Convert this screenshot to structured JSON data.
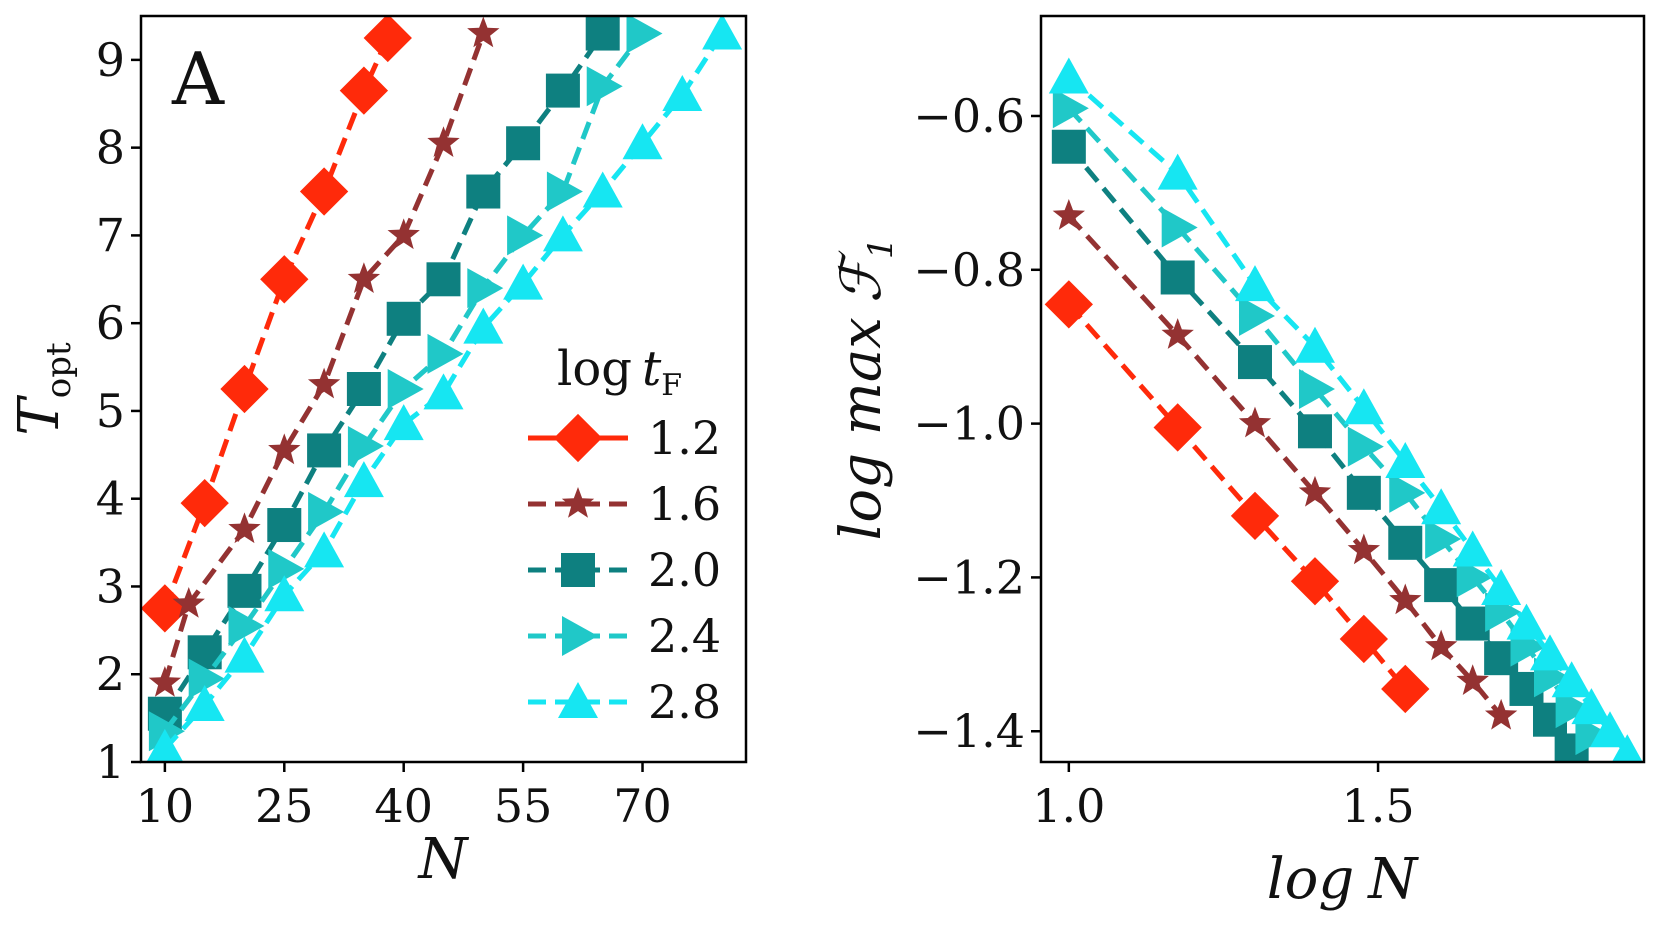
{
  "chart_data": [
    {
      "type": "line",
      "panel_label": "A",
      "xlabel": "N",
      "ylabel": "T",
      "ylabel_subscript": "opt",
      "xlim": [
        7,
        83
      ],
      "ylim": [
        1,
        9.5
      ],
      "xticks": [
        10,
        25,
        40,
        55,
        70
      ],
      "yticks": [
        1,
        2,
        3,
        4,
        5,
        6,
        7,
        8,
        9
      ],
      "grid": false,
      "legend": {
        "title_prefix": "log",
        "title_var": "t",
        "title_subscript": "F",
        "placement": "center-right",
        "entries": [
          "1.2",
          "1.6",
          "2.0",
          "2.4",
          "2.8"
        ]
      },
      "series": [
        {
          "name": "1.2",
          "color": "#ff2a0a",
          "marker": "diamond",
          "x": [
            10,
            15,
            20,
            25,
            30,
            35,
            38
          ],
          "y": [
            2.75,
            3.95,
            5.25,
            6.5,
            7.5,
            8.65,
            9.25
          ]
        },
        {
          "name": "1.6",
          "color": "#943232",
          "marker": "star",
          "x": [
            10,
            13,
            20,
            25,
            30,
            35,
            40,
            45,
            50
          ],
          "y": [
            1.9,
            2.8,
            3.65,
            4.55,
            5.3,
            6.5,
            7.0,
            8.05,
            9.3
          ]
        },
        {
          "name": "2.0",
          "color": "#0e8080",
          "marker": "square",
          "x": [
            10,
            15,
            20,
            25,
            30,
            35,
            40,
            45,
            50,
            55,
            60,
            65
          ],
          "y": [
            1.55,
            2.25,
            2.95,
            3.7,
            4.55,
            5.25,
            6.05,
            6.5,
            7.5,
            8.05,
            8.65,
            9.3
          ]
        },
        {
          "name": "2.4",
          "color": "#20c8c8",
          "marker": "triangle-right",
          "x": [
            10,
            15,
            20,
            25,
            30,
            35,
            40,
            45,
            50,
            55,
            60,
            65,
            70
          ],
          "y": [
            1.35,
            1.95,
            2.55,
            3.2,
            3.85,
            4.6,
            5.25,
            5.65,
            6.4,
            7.0,
            7.5,
            8.7,
            9.3
          ]
        },
        {
          "name": "2.8",
          "color": "#16e6f2",
          "marker": "triangle-up",
          "x": [
            10,
            15,
            20,
            25,
            30,
            35,
            40,
            45,
            50,
            55,
            60,
            65,
            70,
            75,
            80
          ],
          "y": [
            1.15,
            1.65,
            2.2,
            2.9,
            3.4,
            4.2,
            4.85,
            5.2,
            5.95,
            6.45,
            7.0,
            7.5,
            8.05,
            8.6,
            9.3
          ]
        }
      ]
    },
    {
      "type": "line",
      "xlabel_prefix": "log",
      "xlabel_var": "N",
      "ylabel_prefix": "log max",
      "ylabel_var": "ℱ",
      "ylabel_subscript": "1",
      "xlim": [
        0.955,
        1.93
      ],
      "ylim": [
        -1.44,
        -0.47
      ],
      "xticks": [
        1.0,
        1.5
      ],
      "xtick_labels": [
        "1.0",
        "1.5"
      ],
      "yticks": [
        -0.6,
        -0.8,
        -1.0,
        -1.2,
        -1.4
      ],
      "ytick_labels": [
        "−0.6",
        "−0.8",
        "−1.0",
        "−1.2",
        "−1.4"
      ],
      "grid": false,
      "series": [
        {
          "name": "1.2",
          "color": "#ff2a0a",
          "marker": "diamond",
          "x": [
            1.0,
            1.176,
            1.301,
            1.398,
            1.477,
            1.544
          ],
          "y": [
            -0.845,
            -1.005,
            -1.12,
            -1.205,
            -1.28,
            -1.345
          ]
        },
        {
          "name": "1.6",
          "color": "#943232",
          "marker": "star",
          "x": [
            1.0,
            1.176,
            1.301,
            1.398,
            1.477,
            1.544,
            1.602,
            1.653,
            1.699
          ],
          "y": [
            -0.73,
            -0.885,
            -1.0,
            -1.09,
            -1.165,
            -1.23,
            -1.29,
            -1.335,
            -1.38
          ]
        },
        {
          "name": "2.0",
          "color": "#0e8080",
          "marker": "square",
          "x": [
            1.0,
            1.176,
            1.301,
            1.398,
            1.477,
            1.544,
            1.602,
            1.653,
            1.699,
            1.74,
            1.778,
            1.813
          ],
          "y": [
            -0.64,
            -0.81,
            -0.92,
            -1.01,
            -1.09,
            -1.155,
            -1.21,
            -1.26,
            -1.305,
            -1.345,
            -1.385,
            -1.425
          ]
        },
        {
          "name": "2.4",
          "color": "#20c8c8",
          "marker": "triangle-right",
          "x": [
            1.0,
            1.176,
            1.301,
            1.398,
            1.477,
            1.544,
            1.602,
            1.653,
            1.699,
            1.74,
            1.778,
            1.813,
            1.845
          ],
          "y": [
            -0.59,
            -0.745,
            -0.86,
            -0.955,
            -1.03,
            -1.09,
            -1.15,
            -1.2,
            -1.245,
            -1.29,
            -1.33,
            -1.37,
            -1.405
          ]
        },
        {
          "name": "2.8",
          "color": "#16e6f2",
          "marker": "triangle-up",
          "x": [
            1.0,
            1.176,
            1.301,
            1.398,
            1.477,
            1.544,
            1.602,
            1.653,
            1.699,
            1.74,
            1.778,
            1.813,
            1.845,
            1.875,
            1.903
          ],
          "y": [
            -0.55,
            -0.675,
            -0.82,
            -0.9,
            -0.98,
            -1.05,
            -1.11,
            -1.165,
            -1.215,
            -1.26,
            -1.3,
            -1.335,
            -1.37,
            -1.4,
            -1.43
          ]
        }
      ]
    }
  ]
}
